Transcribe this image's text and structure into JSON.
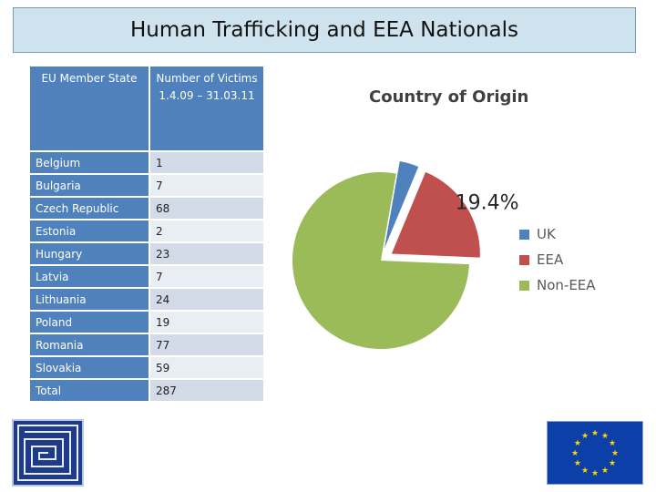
{
  "title": "Human Trafficking and EEA Nationals",
  "table": {
    "header": [
      "EU Member State",
      "Number of Victims",
      "1.4.09 – 31.03.11"
    ],
    "rows": [
      {
        "state": "Belgium",
        "victims": "1"
      },
      {
        "state": "Bulgaria",
        "victims": "7"
      },
      {
        "state": "Czech Republic",
        "victims": "68"
      },
      {
        "state": "Estonia",
        "victims": "2"
      },
      {
        "state": "Hungary",
        "victims": "23"
      },
      {
        "state": "Latvia",
        "victims": "7"
      },
      {
        "state": "Lithuania",
        "victims": "24"
      },
      {
        "state": "Poland",
        "victims": "19"
      },
      {
        "state": "Romania",
        "victims": "77"
      },
      {
        "state": "Slovakia",
        "victims": "59"
      },
      {
        "state": "Total",
        "victims": "287"
      }
    ]
  },
  "chart_data": {
    "type": "pie",
    "title": "Country of Origin",
    "labels": [
      "UK",
      "EEA",
      "Non-EEA"
    ],
    "values": [
      3.5,
      19.4,
      77.1
    ],
    "colors": [
      "#4f81bd",
      "#c0504d",
      "#9bbb59"
    ],
    "data_labels": {
      "EEA": "19.4%"
    },
    "legend_position": "right"
  },
  "logos": {
    "left": "maze-logo",
    "right": "eu-flag"
  }
}
